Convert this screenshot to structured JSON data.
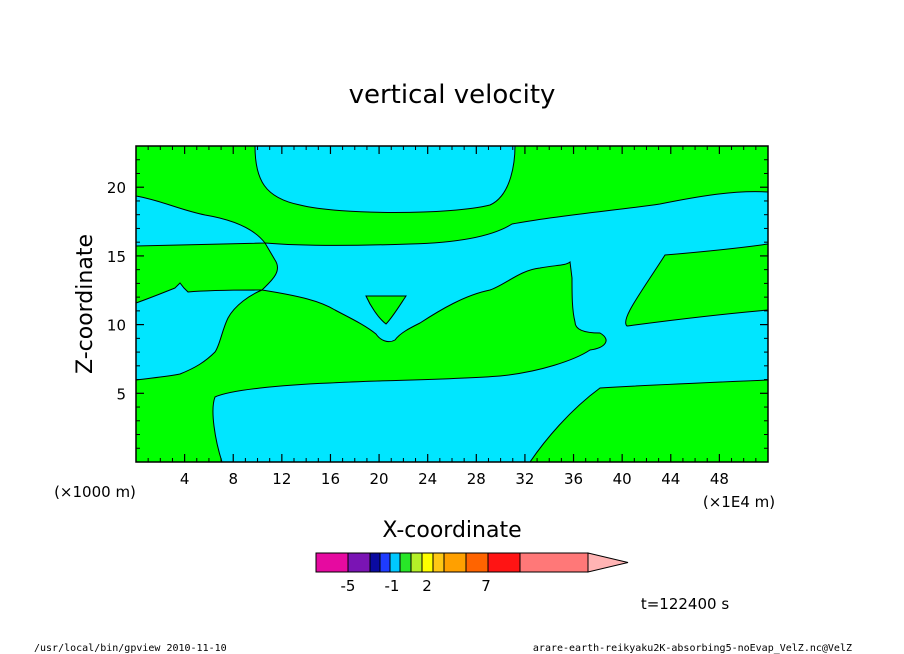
{
  "chart_data": {
    "type": "heatmap",
    "title": "vertical velocity",
    "xlabel": "X-coordinate",
    "ylabel": "Z-coordinate",
    "x_scale_label": "(×1E4 m)",
    "y_scale_label": "(×1000 m)",
    "xlim": [
      0,
      52
    ],
    "ylim": [
      0,
      23
    ],
    "x_ticks": [
      "4",
      "8",
      "12",
      "16",
      "20",
      "24",
      "28",
      "32",
      "36",
      "40",
      "44",
      "48"
    ],
    "x_tick_values": [
      4,
      8,
      12,
      16,
      20,
      24,
      28,
      32,
      36,
      40,
      44,
      48
    ],
    "y_ticks": [
      "5",
      "10",
      "15",
      "20"
    ],
    "y_tick_values": [
      5,
      10,
      15,
      20
    ],
    "grid": false,
    "colorbar": {
      "colors": [
        "#e60aa0",
        "#7a14b4",
        "#0a0aa0",
        "#1e3cff",
        "#00c8ff",
        "#28e628",
        "#b4f028",
        "#ffff00",
        "#ffc814",
        "#ffa000",
        "#ff6400",
        "#ff1414",
        "#ff7878",
        "#ffb4b4"
      ],
      "labels": [
        {
          "text": "-5",
          "value": -5
        },
        {
          "text": "-1",
          "value": -1
        },
        {
          "text": "2",
          "value": 2
        },
        {
          "text": "7",
          "value": 7
        }
      ]
    },
    "fields": {
      "positive_color": "#00ff00",
      "negative_color": "#00e6ff"
    },
    "regions_note": "cyan regions = negative vertical velocity; green regions = positive"
  },
  "time_label": "t=122400 s",
  "footer": {
    "left": "/usr/local/bin/gpview   2010-11-10",
    "right": "arare-earth-reikyaku2K-absorbing5-noEvap_VelZ.nc@VelZ"
  }
}
